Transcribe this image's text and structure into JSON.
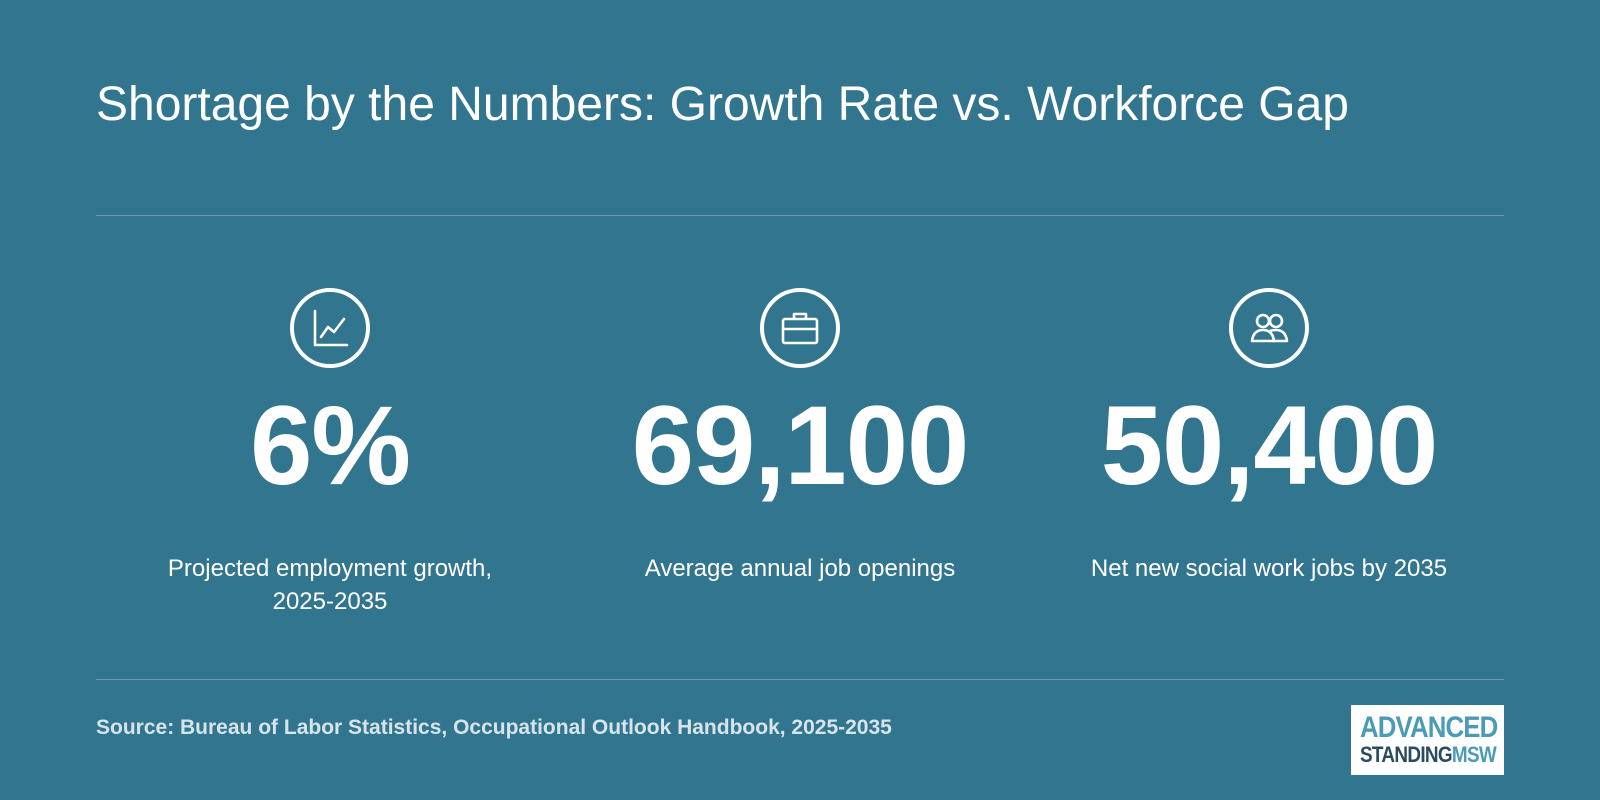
{
  "header": {
    "title": "Shortage by the Numbers: Growth Rate vs. Workforce Gap"
  },
  "stats": [
    {
      "icon": "line-chart-icon",
      "value": "6%",
      "label": "Projected employment growth, 2025-2035"
    },
    {
      "icon": "briefcase-icon",
      "value": "69,100",
      "label": "Average annual job openings"
    },
    {
      "icon": "people-icon",
      "value": "50,400",
      "label": "Net new social work jobs by 2035"
    }
  ],
  "footer": {
    "source": "Source: Bureau of Labor Statistics, Occupational Outlook Handbook, 2025-2035",
    "logo": {
      "line1": "ADVANCED",
      "line2a": "STANDING",
      "line2b": "MSW"
    }
  },
  "colors": {
    "background": "#32758e",
    "text": "#ffffff",
    "logo_accent": "#4a9ab8",
    "logo_dark": "#2a4b5f"
  }
}
